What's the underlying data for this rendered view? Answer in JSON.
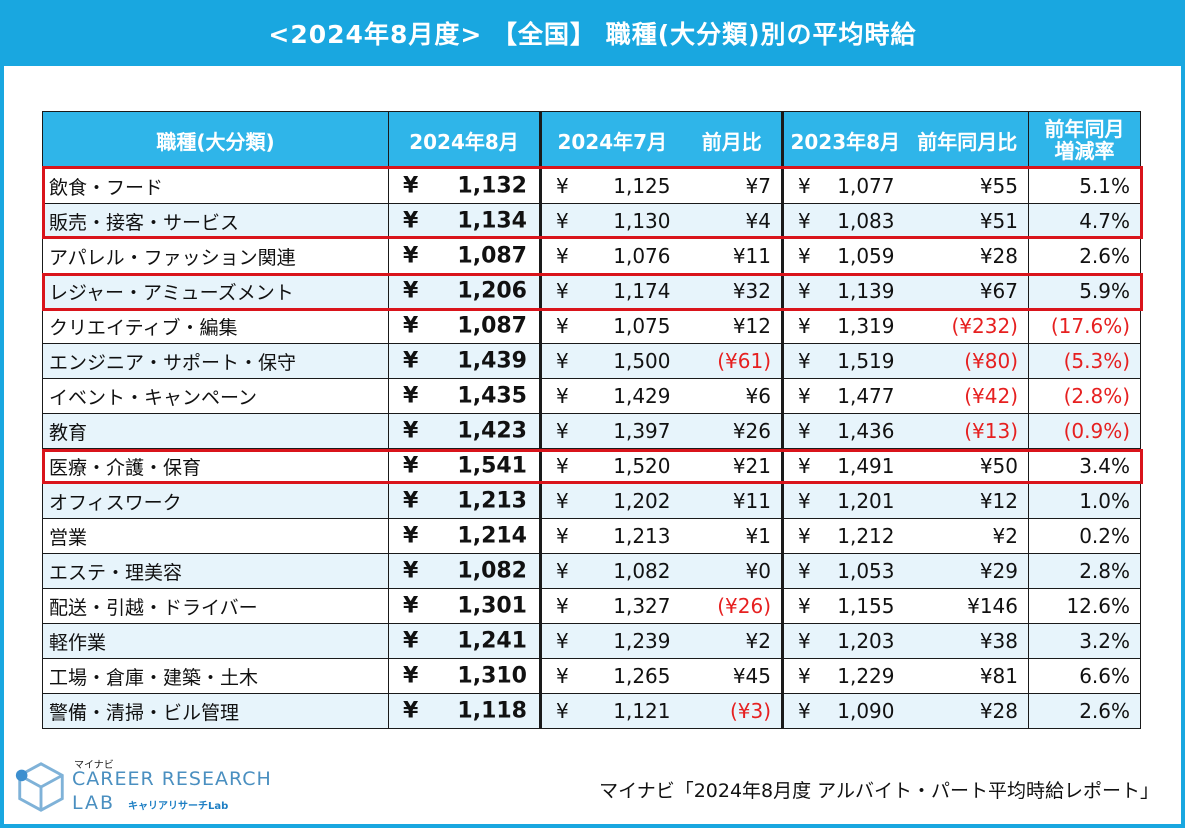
{
  "title": "<2024年8月度> 【全国】 職種(大分類)別の平均時給",
  "headers": {
    "category": "職種(大分類)",
    "aug2024": "2024年8月",
    "jul2024": "2024年7月",
    "mom": "前月比",
    "aug2023": "2023年8月",
    "yoy": "前年同月比",
    "yoy_rate_line1": "前年同月",
    "yoy_rate_line2": "増減率"
  },
  "currency_symbol": "¥",
  "rows": [
    {
      "name": "飲食・フード",
      "aug2024": "1,132",
      "jul2024": "1,125",
      "mom": "¥7",
      "aug2023": "1,077",
      "yoy": "¥55",
      "rate": "5.1%",
      "mom_neg": false,
      "yoy_neg": false,
      "rate_neg": false
    },
    {
      "name": "販売・接客・サービス",
      "aug2024": "1,134",
      "jul2024": "1,130",
      "mom": "¥4",
      "aug2023": "1,083",
      "yoy": "¥51",
      "rate": "4.7%",
      "mom_neg": false,
      "yoy_neg": false,
      "rate_neg": false
    },
    {
      "name": "アパレル・ファッション関連",
      "aug2024": "1,087",
      "jul2024": "1,076",
      "mom": "¥11",
      "aug2023": "1,059",
      "yoy": "¥28",
      "rate": "2.6%",
      "mom_neg": false,
      "yoy_neg": false,
      "rate_neg": false
    },
    {
      "name": "レジャー・アミューズメント",
      "aug2024": "1,206",
      "jul2024": "1,174",
      "mom": "¥32",
      "aug2023": "1,139",
      "yoy": "¥67",
      "rate": "5.9%",
      "mom_neg": false,
      "yoy_neg": false,
      "rate_neg": false
    },
    {
      "name": "クリエイティブ・編集",
      "aug2024": "1,087",
      "jul2024": "1,075",
      "mom": "¥12",
      "aug2023": "1,319",
      "yoy": "(¥232)",
      "rate": "(17.6%)",
      "mom_neg": false,
      "yoy_neg": true,
      "rate_neg": true
    },
    {
      "name": "エンジニア・サポート・保守",
      "aug2024": "1,439",
      "jul2024": "1,500",
      "mom": "(¥61)",
      "aug2023": "1,519",
      "yoy": "(¥80)",
      "rate": "(5.3%)",
      "mom_neg": true,
      "yoy_neg": true,
      "rate_neg": true
    },
    {
      "name": "イベント・キャンペーン",
      "aug2024": "1,435",
      "jul2024": "1,429",
      "mom": "¥6",
      "aug2023": "1,477",
      "yoy": "(¥42)",
      "rate": "(2.8%)",
      "mom_neg": false,
      "yoy_neg": true,
      "rate_neg": true
    },
    {
      "name": "教育",
      "aug2024": "1,423",
      "jul2024": "1,397",
      "mom": "¥26",
      "aug2023": "1,436",
      "yoy": "(¥13)",
      "rate": "(0.9%)",
      "mom_neg": false,
      "yoy_neg": true,
      "rate_neg": true
    },
    {
      "name": "医療・介護・保育",
      "aug2024": "1,541",
      "jul2024": "1,520",
      "mom": "¥21",
      "aug2023": "1,491",
      "yoy": "¥50",
      "rate": "3.4%",
      "mom_neg": false,
      "yoy_neg": false,
      "rate_neg": false
    },
    {
      "name": "オフィスワーク",
      "aug2024": "1,213",
      "jul2024": "1,202",
      "mom": "¥11",
      "aug2023": "1,201",
      "yoy": "¥12",
      "rate": "1.0%",
      "mom_neg": false,
      "yoy_neg": false,
      "rate_neg": false
    },
    {
      "name": "営業",
      "aug2024": "1,214",
      "jul2024": "1,213",
      "mom": "¥1",
      "aug2023": "1,212",
      "yoy": "¥2",
      "rate": "0.2%",
      "mom_neg": false,
      "yoy_neg": false,
      "rate_neg": false
    },
    {
      "name": "エステ・理美容",
      "aug2024": "1,082",
      "jul2024": "1,082",
      "mom": "¥0",
      "aug2023": "1,053",
      "yoy": "¥29",
      "rate": "2.8%",
      "mom_neg": false,
      "yoy_neg": false,
      "rate_neg": false
    },
    {
      "name": "配送・引越・ドライバー",
      "aug2024": "1,301",
      "jul2024": "1,327",
      "mom": "(¥26)",
      "aug2023": "1,155",
      "yoy": "¥146",
      "rate": "12.6%",
      "mom_neg": true,
      "yoy_neg": false,
      "rate_neg": false
    },
    {
      "name": "軽作業",
      "aug2024": "1,241",
      "jul2024": "1,239",
      "mom": "¥2",
      "aug2023": "1,203",
      "yoy": "¥38",
      "rate": "3.2%",
      "mom_neg": false,
      "yoy_neg": false,
      "rate_neg": false
    },
    {
      "name": "工場・倉庫・建築・土木",
      "aug2024": "1,310",
      "jul2024": "1,265",
      "mom": "¥45",
      "aug2023": "1,229",
      "yoy": "¥81",
      "rate": "6.6%",
      "mom_neg": false,
      "yoy_neg": false,
      "rate_neg": false
    },
    {
      "name": "警備・清掃・ビル管理",
      "aug2024": "1,118",
      "jul2024": "1,121",
      "mom": "(¥3)",
      "aug2023": "1,090",
      "yoy": "¥28",
      "rate": "2.6%",
      "mom_neg": true,
      "yoy_neg": false,
      "rate_neg": false
    }
  ],
  "source": "マイナビ「2024年8月度 アルバイト・パート平均時給レポート」",
  "logo": {
    "top": "マイナビ",
    "line1": "CAREER RESEARCH",
    "line2": "LAB",
    "sub": "キャリアリサーチLab"
  },
  "colors": {
    "accent": "#19a7e0",
    "header": "#2fb5e9",
    "highlight": "#d9141b",
    "negative": "#e62020"
  }
}
